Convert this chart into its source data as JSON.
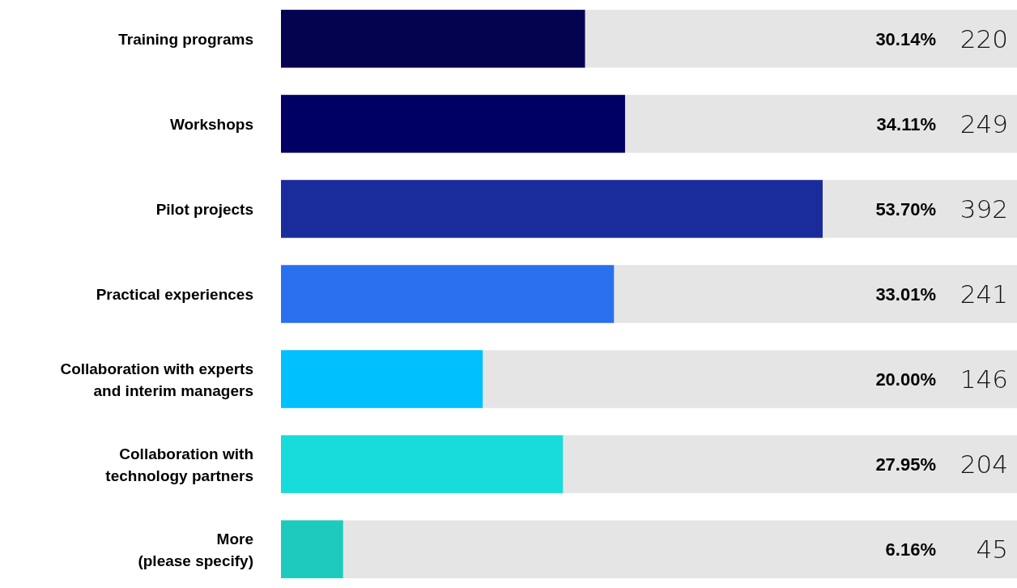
{
  "chart_data": {
    "type": "bar",
    "orientation": "horizontal",
    "categories": [
      "Training programs",
      "Workshops",
      "Pilot projects",
      "Practical experiences",
      "Collaboration with experts\nand interim managers",
      "Collaboration with\ntechnology partners",
      "More\n(please specify)"
    ],
    "values": [
      30.14,
      34.11,
      53.7,
      33.01,
      20.0,
      27.95,
      6.16
    ],
    "colors": [
      "#03034f",
      "#000064",
      "#1a2c9b",
      "#2a6fee",
      "#00c0fe",
      "#18dcdc",
      "#1ccbbe"
    ],
    "value_labels": [
      "30.14%",
      "34.11%",
      "53.70%",
      "33.01%",
      "20.00%",
      "27.95%",
      "6.16%"
    ],
    "annotations": [
      "220",
      "249",
      "392",
      "241",
      "146",
      "204",
      "45"
    ]
  }
}
